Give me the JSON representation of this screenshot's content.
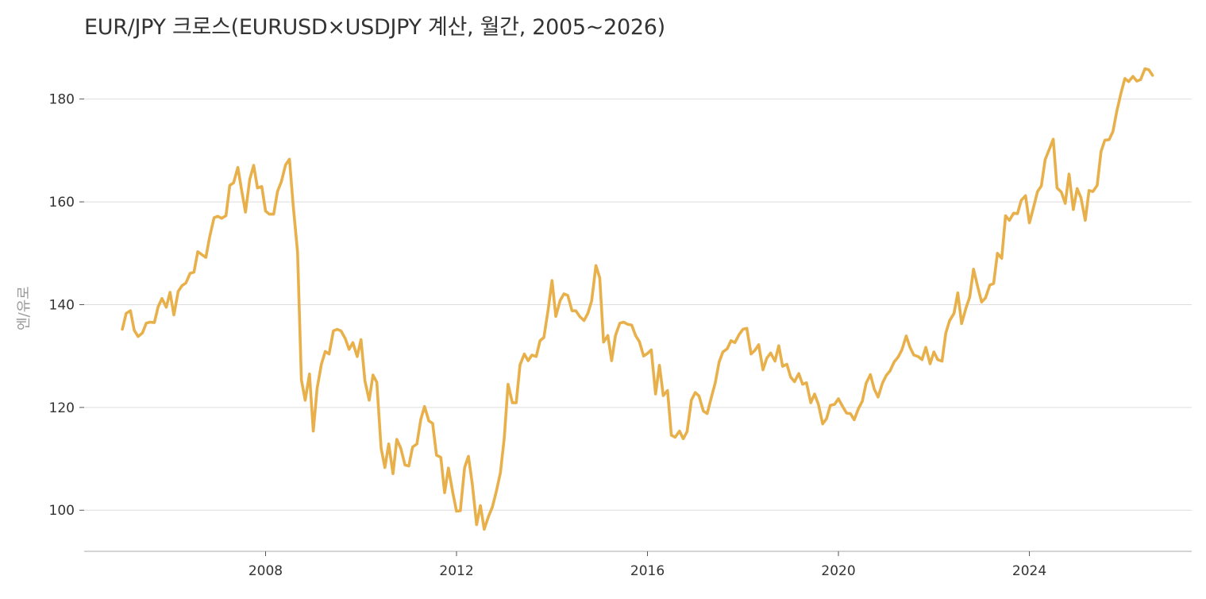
{
  "chart_data": {
    "type": "line",
    "title": "EUR/JPY 크로스(EURUSD×USDJPY 계산, 월간, 2005~2026)",
    "xlabel": "",
    "ylabel": "엔/유로",
    "xlim": [
      2004.2,
      2027.4
    ],
    "ylim": [
      92,
      190
    ],
    "x_ticks": [
      2008,
      2012,
      2016,
      2020,
      2024
    ],
    "y_ticks": [
      100,
      120,
      140,
      160,
      180
    ],
    "grid": "horizontal",
    "line_color": "#e8b04a",
    "series": [
      {
        "x": [
          2005.0,
          2005.08,
          2005.17,
          2005.25,
          2005.33,
          2005.42,
          2005.5,
          2005.58,
          2005.67,
          2005.75,
          2005.83,
          2005.92,
          2006.0,
          2006.08,
          2006.17,
          2006.25,
          2006.33,
          2006.42,
          2006.5,
          2006.58,
          2006.67,
          2006.75,
          2006.83,
          2006.92,
          2007.0,
          2007.08,
          2007.17,
          2007.25,
          2007.33,
          2007.42,
          2007.5,
          2007.58,
          2007.67,
          2007.75,
          2007.83,
          2007.92,
          2008.0,
          2008.08,
          2008.17,
          2008.25,
          2008.33,
          2008.42,
          2008.5,
          2008.58,
          2008.67,
          2008.75,
          2008.83,
          2008.92,
          2009.0,
          2009.08,
          2009.17,
          2009.25,
          2009.33,
          2009.42,
          2009.5,
          2009.58,
          2009.67,
          2009.75,
          2009.83,
          2009.92,
          2010.0,
          2010.08,
          2010.17,
          2010.25,
          2010.33,
          2010.42,
          2010.5,
          2010.58,
          2010.67,
          2010.75,
          2010.83,
          2010.92,
          2011.0,
          2011.08,
          2011.17,
          2011.25,
          2011.33,
          2011.42,
          2011.5,
          2011.58,
          2011.67,
          2011.75,
          2011.83,
          2011.92,
          2012.0,
          2012.08,
          2012.17,
          2012.25,
          2012.33,
          2012.42,
          2012.5,
          2012.58,
          2012.67,
          2012.75,
          2012.83,
          2012.92,
          2013.0,
          2013.08,
          2013.17,
          2013.25,
          2013.33,
          2013.42,
          2013.5,
          2013.58,
          2013.67,
          2013.75,
          2013.83,
          2013.92,
          2014.0,
          2014.08,
          2014.17,
          2014.25,
          2014.33,
          2014.42,
          2014.5,
          2014.58,
          2014.67,
          2014.75,
          2014.83,
          2014.92,
          2015.0,
          2015.08,
          2015.17,
          2015.25,
          2015.33,
          2015.42,
          2015.5,
          2015.58,
          2015.67,
          2015.75,
          2015.83,
          2015.92,
          2016.0,
          2016.08,
          2016.17,
          2016.25,
          2016.33,
          2016.42,
          2016.5,
          2016.58,
          2016.67,
          2016.75,
          2016.83,
          2016.92,
          2017.0,
          2017.08,
          2017.17,
          2017.25,
          2017.33,
          2017.42,
          2017.5,
          2017.58,
          2017.67,
          2017.75,
          2017.83,
          2017.92,
          2018.0,
          2018.08,
          2018.17,
          2018.25,
          2018.33,
          2018.42,
          2018.5,
          2018.58,
          2018.67,
          2018.75,
          2018.83,
          2018.92,
          2019.0,
          2019.08,
          2019.17,
          2019.25,
          2019.33,
          2019.42,
          2019.5,
          2019.58,
          2019.67,
          2019.75,
          2019.83,
          2019.92,
          2020.0,
          2020.08,
          2020.17,
          2020.25,
          2020.33,
          2020.42,
          2020.5,
          2020.58,
          2020.67,
          2020.75,
          2020.83,
          2020.92,
          2021.0,
          2021.08,
          2021.17,
          2021.25,
          2021.33,
          2021.42,
          2021.5,
          2021.58,
          2021.67,
          2021.75,
          2021.83,
          2021.92,
          2022.0,
          2022.08,
          2022.17,
          2022.25,
          2022.33,
          2022.42,
          2022.5,
          2022.58,
          2022.67,
          2022.75,
          2022.83,
          2022.92,
          2023.0,
          2023.08,
          2023.17,
          2023.25,
          2023.33,
          2023.42,
          2023.5,
          2023.58,
          2023.67,
          2023.75,
          2023.83,
          2023.92,
          2024.0,
          2024.08,
          2024.17,
          2024.25,
          2024.33,
          2024.42,
          2024.5,
          2024.58,
          2024.67,
          2024.75,
          2024.83,
          2024.92,
          2025.0,
          2025.08,
          2025.17,
          2025.25,
          2025.33,
          2025.42,
          2025.5,
          2025.58,
          2025.67,
          2025.75,
          2025.83,
          2025.92,
          2026.0,
          2026.08,
          2026.17,
          2026.25,
          2026.33,
          2026.42,
          2026.5,
          2026.58
        ],
        "y": [
          135.2,
          138.3,
          138.8,
          135.0,
          133.8,
          134.5,
          136.4,
          136.6,
          136.5,
          139.6,
          141.2,
          139.5,
          142.4,
          138.0,
          142.6,
          143.7,
          144.2,
          146.1,
          146.3,
          150.3,
          149.7,
          149.2,
          153.2,
          156.9,
          157.2,
          156.8,
          157.3,
          163.2,
          163.7,
          166.7,
          162.2,
          158.0,
          164.4,
          167.1,
          162.7,
          163.0,
          158.2,
          157.6,
          157.6,
          162.0,
          163.9,
          167.2,
          168.3,
          159.1,
          150.2,
          125.4,
          121.4,
          126.5,
          115.4,
          123.7,
          128.4,
          130.9,
          130.4,
          134.9,
          135.2,
          134.9,
          133.4,
          131.3,
          132.6,
          129.9,
          133.2,
          125.2,
          121.4,
          126.3,
          124.9,
          112.1,
          108.3,
          112.9,
          107.1,
          113.8,
          112.1,
          108.8,
          108.6,
          112.3,
          112.9,
          117.6,
          120.2,
          117.4,
          116.9,
          110.7,
          110.3,
          103.4,
          108.2,
          103.5,
          99.8,
          99.9,
          108.3,
          110.5,
          105.1,
          97.2,
          100.9,
          96.3,
          98.8,
          100.6,
          103.5,
          107.3,
          114.0,
          124.5,
          120.9,
          120.9,
          128.3,
          130.4,
          129.1,
          130.2,
          129.9,
          133.0,
          133.6,
          139.1,
          144.7,
          137.7,
          140.8,
          142.1,
          141.8,
          138.8,
          138.8,
          137.7,
          136.9,
          138.3,
          140.7,
          147.6,
          145.2,
          132.7,
          134.0,
          129.1,
          134.0,
          136.4,
          136.6,
          136.2,
          136.0,
          134.0,
          132.8,
          130.0,
          130.5,
          131.2,
          122.6,
          128.2,
          122.3,
          123.3,
          114.6,
          114.2,
          115.4,
          113.9,
          115.3,
          121.4,
          122.9,
          122.2,
          119.3,
          118.8,
          121.7,
          124.8,
          128.8,
          130.8,
          131.4,
          133.0,
          132.6,
          134.2,
          135.2,
          135.4,
          130.4,
          131.1,
          132.2,
          127.3,
          129.6,
          130.6,
          129.0,
          132.0,
          128.0,
          128.4,
          125.9,
          125.0,
          126.6,
          124.5,
          124.8,
          120.9,
          122.6,
          120.6,
          116.8,
          117.8,
          120.4,
          120.6,
          121.7,
          120.3,
          118.9,
          118.8,
          117.6,
          119.8,
          121.2,
          124.7,
          126.4,
          123.6,
          122.0,
          124.7,
          126.2,
          127.1,
          128.9,
          129.8,
          131.2,
          133.9,
          131.7,
          130.2,
          129.9,
          129.3,
          131.7,
          128.5,
          130.8,
          129.3,
          129.0,
          134.5,
          136.9,
          138.3,
          142.3,
          136.3,
          139.3,
          141.5,
          146.9,
          143.4,
          140.5,
          141.3,
          143.8,
          144.1,
          150.0,
          149.0,
          157.3,
          156.4,
          157.8,
          157.7,
          160.3,
          161.2,
          155.9,
          158.7,
          162.0,
          163.1,
          168.2,
          170.3,
          172.2,
          162.7,
          161.9,
          159.7,
          165.4,
          158.5,
          162.6,
          160.8,
          156.4,
          162.2,
          162.0,
          163.2,
          169.8,
          172.0,
          172.1,
          173.7,
          177.6,
          181.2,
          184.0,
          183.4,
          184.4,
          183.5,
          183.8,
          185.9,
          185.7,
          184.6
        ]
      }
    ]
  }
}
